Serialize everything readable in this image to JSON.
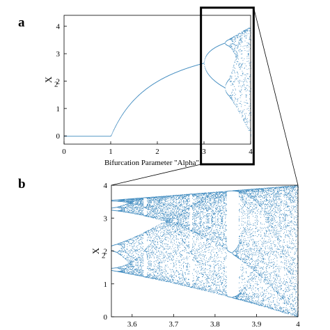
{
  "panels": [
    {
      "letter": "a"
    },
    {
      "letter": "b"
    }
  ],
  "colors": {
    "points": "#1f77b4",
    "axes": "#000000",
    "zoom_box": "#000000"
  },
  "chart_data": [
    {
      "type": "scatter",
      "panel": "a",
      "title": "",
      "xlabel": "Bifurcation Parameter \"Alpha\"",
      "ylabel": "X",
      "ylabel_subscript": "2",
      "xlim": [
        0,
        4
      ],
      "ylim": [
        -0.3,
        4.4
      ],
      "xticks": [
        0,
        1,
        2,
        3,
        4
      ],
      "yticks": [
        0,
        1,
        2,
        3,
        4
      ],
      "grid": false,
      "map": "logistic",
      "x_start": 0,
      "x_end": 4,
      "series": [
        {
          "name": "",
          "description_values": {
            "fixed_point_at_zero_for_alpha_below": 1,
            "fixed_point_at_alpha_3": 2.0,
            "period_doubling_at": 3.0,
            "chaos_onset": 3.57,
            "max_value": 4.0
          }
        }
      ],
      "zoom_window": {
        "x": [
          2.95,
          4.05
        ],
        "y": [
          -0.3,
          4.4
        ]
      }
    },
    {
      "type": "scatter",
      "panel": "b",
      "title": "",
      "xlabel": "",
      "ylabel": "X",
      "ylabel_subscript": "2",
      "xlim": [
        3.55,
        4.0
      ],
      "ylim": [
        0,
        4
      ],
      "xticks": [
        3.6,
        3.7,
        3.8,
        3.9,
        4
      ],
      "yticks": [
        0,
        1,
        2,
        3,
        4
      ],
      "grid": false,
      "map": "logistic",
      "x_start": 3.55,
      "x_end": 4.0
    }
  ]
}
